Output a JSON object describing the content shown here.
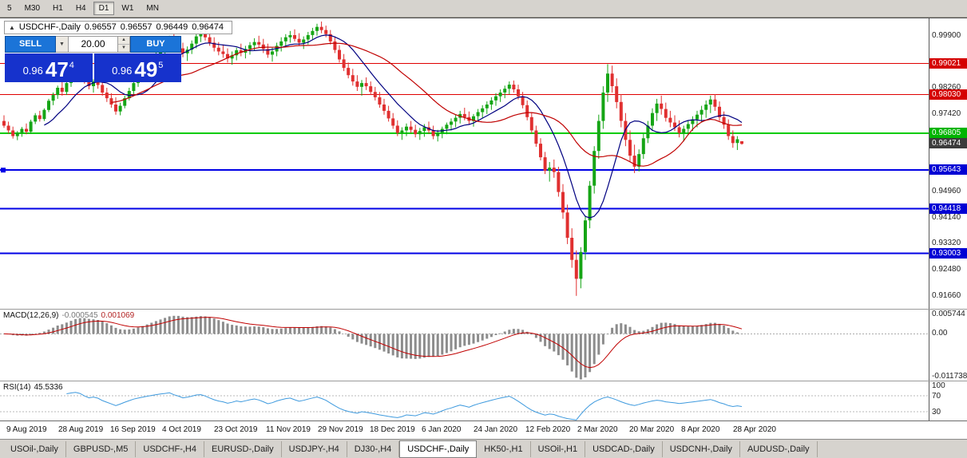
{
  "toolbar": {
    "timeframes": [
      "5",
      "M30",
      "H1",
      "H4",
      "D1",
      "W1",
      "MN"
    ],
    "active_timeframe": "D1"
  },
  "chart": {
    "symbol": "USDCHF-,Daily",
    "open": "0.96557",
    "high": "0.96557",
    "low": "0.96449",
    "close": "0.96474"
  },
  "trade_panel": {
    "sell_label": "SELL",
    "buy_label": "BUY",
    "volume": "20.00",
    "sell_price_prefix": "0.96",
    "sell_price_main": "47",
    "sell_price_sup": "4",
    "buy_price_prefix": "0.96",
    "buy_price_main": "49",
    "buy_price_sup": "5"
  },
  "icons": {
    "collapse": "▲",
    "dropdown": "▼",
    "spin_up": "▲",
    "spin_down": "▼"
  },
  "macd": {
    "label": "MACD(12,26,9)",
    "value_main": "-0.000545",
    "value_signal": "0.001069",
    "params": [
      12,
      26,
      9
    ],
    "axis": [
      {
        "text": "0.005744",
        "value": 0.005744
      },
      {
        "text": "0.00",
        "value": 0
      },
      {
        "text": "-0.011738",
        "value": -0.011738
      }
    ]
  },
  "rsi": {
    "label": "RSI(14)",
    "value": "45.5336",
    "period": 14,
    "level_lines": [
      70,
      30
    ],
    "axis": [
      {
        "text": "100",
        "value": 100
      },
      {
        "text": "70",
        "value": 70
      },
      {
        "text": "30",
        "value": 30
      }
    ]
  },
  "tabs": {
    "active": "USDCHF-,Daily",
    "items": [
      {
        "label": "USOil-,Daily"
      },
      {
        "label": "GBPUSD-,M5"
      },
      {
        "label": "USDCHF-,H4"
      },
      {
        "label": "EURUSD-,Daily"
      },
      {
        "label": "USDJPY-,H4"
      },
      {
        "label": "DJ30-,H4"
      },
      {
        "label": "USDCHF-,Daily"
      },
      {
        "label": "HK50-,H1"
      },
      {
        "label": "USOil-,H1"
      },
      {
        "label": "USDCAD-,Daily"
      },
      {
        "label": "USDCNH-,Daily"
      },
      {
        "label": "AUDUSD-,Daily"
      }
    ]
  },
  "chart_data": {
    "type": "candlestick",
    "symbol": "USDCHF",
    "timeframe": "Daily",
    "y_range": [
      0.9125,
      1.0045
    ],
    "x_dates": [
      "9 Aug 2019",
      "28 Aug 2019",
      "16 Sep 2019",
      "4 Oct 2019",
      "23 Oct 2019",
      "11 Nov 2019",
      "29 Nov 2019",
      "18 Dec 2019",
      "6 Jan 2020",
      "24 Jan 2020",
      "12 Feb 2020",
      "2 Mar 2020",
      "20 Mar 2020",
      "8 Apr 2020",
      "28 Apr 2020"
    ],
    "y_ticks": [
      {
        "text": "0.99900",
        "value": 0.999
      },
      {
        "text": "0.98260",
        "value": 0.9826
      },
      {
        "text": "0.97420",
        "value": 0.9742
      },
      {
        "text": "0.94960",
        "value": 0.9496
      },
      {
        "text": "0.94140",
        "value": 0.9414
      },
      {
        "text": "0.93320",
        "value": 0.9332
      },
      {
        "text": "0.92480",
        "value": 0.9248
      },
      {
        "text": "0.91660",
        "value": 0.9166
      }
    ],
    "price_tags": [
      {
        "text": "0.99021",
        "value": 0.99021,
        "bg": "#d40000"
      },
      {
        "text": "0.98030",
        "value": 0.9803,
        "bg": "#d40000"
      },
      {
        "text": "0.96805",
        "value": 0.96805,
        "bg": "#00b400"
      },
      {
        "text": "0.96474",
        "value": 0.96474,
        "bg": "#3c3c3c"
      },
      {
        "text": "0.95643",
        "value": 0.95643,
        "bg": "#0000d4"
      },
      {
        "text": "0.94418",
        "value": 0.94418,
        "bg": "#0000d4"
      },
      {
        "text": "0.93003",
        "value": 0.93003,
        "bg": "#0000d4"
      }
    ],
    "levels": [
      {
        "price": 0.99021,
        "color": "#e00000",
        "width": 1
      },
      {
        "price": 0.9803,
        "color": "#e00000",
        "width": 1
      },
      {
        "price": 0.96805,
        "color": "#00cc00",
        "width": 2
      },
      {
        "price": 0.95643,
        "color": "#0000e6",
        "width": 2,
        "handle": true
      },
      {
        "price": 0.94418,
        "color": "#0000e6",
        "width": 2
      },
      {
        "price": 0.93003,
        "color": "#0000e6",
        "width": 2
      }
    ],
    "indicators": {
      "ma_fast_period": 10,
      "ma_slow_period": 25
    },
    "colors": {
      "up": "#16a516",
      "down": "#e03030",
      "ma_fast": "#000080",
      "ma_slow": "#c00000",
      "macd_hist": "#8c8c8c",
      "macd_signal": "#c00000",
      "rsi": "#3e9ade"
    },
    "ohlc": [
      [
        0.972,
        0.9738,
        0.9698,
        0.9705
      ],
      [
        0.9705,
        0.9718,
        0.968,
        0.969
      ],
      [
        0.969,
        0.9702,
        0.9664,
        0.9672
      ],
      [
        0.9672,
        0.9688,
        0.9659,
        0.9682
      ],
      [
        0.9682,
        0.9701,
        0.967,
        0.9695
      ],
      [
        0.9695,
        0.9712,
        0.9678,
        0.9686
      ],
      [
        0.9686,
        0.9724,
        0.968,
        0.9718
      ],
      [
        0.9718,
        0.9745,
        0.971,
        0.9738
      ],
      [
        0.9738,
        0.9752,
        0.9718,
        0.9726
      ],
      [
        0.9726,
        0.976,
        0.972,
        0.9755
      ],
      [
        0.9755,
        0.979,
        0.9748,
        0.9784
      ],
      [
        0.9784,
        0.981,
        0.977,
        0.9802
      ],
      [
        0.9802,
        0.9832,
        0.979,
        0.9825
      ],
      [
        0.9825,
        0.9845,
        0.98,
        0.9812
      ],
      [
        0.9812,
        0.9848,
        0.9802,
        0.984
      ],
      [
        0.984,
        0.9872,
        0.9828,
        0.986
      ],
      [
        0.986,
        0.989,
        0.9845,
        0.9878
      ],
      [
        0.9878,
        0.9902,
        0.986,
        0.9869
      ],
      [
        0.9869,
        0.988,
        0.9838,
        0.9848
      ],
      [
        0.9848,
        0.9865,
        0.982,
        0.983
      ],
      [
        0.983,
        0.9852,
        0.981,
        0.9845
      ],
      [
        0.9845,
        0.986,
        0.9822,
        0.9834
      ],
      [
        0.9834,
        0.9846,
        0.98,
        0.981
      ],
      [
        0.981,
        0.9825,
        0.978,
        0.9792
      ],
      [
        0.9792,
        0.9808,
        0.9762,
        0.9772
      ],
      [
        0.9772,
        0.9795,
        0.974,
        0.975
      ],
      [
        0.975,
        0.9778,
        0.9738,
        0.9768
      ],
      [
        0.9768,
        0.98,
        0.976,
        0.9792
      ],
      [
        0.9792,
        0.9825,
        0.9785,
        0.9815
      ],
      [
        0.9815,
        0.9848,
        0.9805,
        0.984
      ],
      [
        0.984,
        0.987,
        0.9828,
        0.9858
      ],
      [
        0.9858,
        0.9888,
        0.9845,
        0.9875
      ],
      [
        0.9875,
        0.9905,
        0.9862,
        0.9895
      ],
      [
        0.9895,
        0.9925,
        0.988,
        0.9912
      ],
      [
        0.9912,
        0.994,
        0.9898,
        0.993
      ],
      [
        0.993,
        0.9958,
        0.9915,
        0.9945
      ],
      [
        0.9945,
        0.9972,
        0.993,
        0.996
      ],
      [
        0.996,
        0.999,
        0.9945,
        0.9978
      ],
      [
        0.9978,
        1.0,
        0.9952,
        0.9962
      ],
      [
        0.9962,
        0.998,
        0.9938,
        0.995
      ],
      [
        0.995,
        0.9968,
        0.9922,
        0.9934
      ],
      [
        0.9934,
        0.9956,
        0.991,
        0.9946
      ],
      [
        0.9946,
        0.9975,
        0.9932,
        0.9965
      ],
      [
        0.9965,
        0.9998,
        0.995,
        0.9988
      ],
      [
        0.9988,
        1.0008,
        0.997,
        0.9996
      ],
      [
        0.9996,
        1.0012,
        0.9975,
        0.9985
      ],
      [
        0.9985,
        0.9999,
        0.9958,
        0.9968
      ],
      [
        0.9968,
        0.9985,
        0.994,
        0.9952
      ],
      [
        0.9952,
        0.997,
        0.9928,
        0.994
      ],
      [
        0.994,
        0.9962,
        0.992,
        0.9932
      ],
      [
        0.9932,
        0.995,
        0.9905,
        0.9918
      ],
      [
        0.9918,
        0.994,
        0.9898,
        0.9928
      ],
      [
        0.9928,
        0.9952,
        0.9912,
        0.9944
      ],
      [
        0.9944,
        0.9965,
        0.9925,
        0.9936
      ],
      [
        0.9936,
        0.9958,
        0.9918,
        0.9948
      ],
      [
        0.9948,
        0.997,
        0.993,
        0.996
      ],
      [
        0.996,
        0.9982,
        0.9942,
        0.997
      ],
      [
        0.997,
        0.999,
        0.9952,
        0.9962
      ],
      [
        0.9962,
        0.998,
        0.9935,
        0.9948
      ],
      [
        0.9948,
        0.9965,
        0.992,
        0.993
      ],
      [
        0.993,
        0.9952,
        0.9908,
        0.994
      ],
      [
        0.994,
        0.9968,
        0.9925,
        0.9958
      ],
      [
        0.9958,
        0.9985,
        0.994,
        0.9972
      ],
      [
        0.9972,
        0.9995,
        0.9955,
        0.9985
      ],
      [
        0.9985,
        1.0005,
        0.9968,
        0.9992
      ],
      [
        0.9992,
        1.001,
        0.9972,
        0.998
      ],
      [
        0.998,
        0.9998,
        0.9958,
        0.9968
      ],
      [
        0.9968,
        0.9988,
        0.9948,
        0.9978
      ],
      [
        0.9978,
        1.0002,
        0.9962,
        0.9992
      ],
      [
        0.9992,
        1.0015,
        0.9978,
        1.0005
      ],
      [
        1.0005,
        1.0028,
        0.999,
        1.0018
      ],
      [
        1.0018,
        1.0035,
        0.9998,
        1.0008
      ],
      [
        1.0008,
        1.0022,
        0.9985,
        0.9995
      ],
      [
        0.9995,
        1.0008,
        0.9962,
        0.9972
      ],
      [
        0.9972,
        0.9988,
        0.9935,
        0.9945
      ],
      [
        0.9945,
        0.996,
        0.9905,
        0.9915
      ],
      [
        0.9915,
        0.9932,
        0.9878,
        0.9888
      ],
      [
        0.9888,
        0.9905,
        0.9855,
        0.9865
      ],
      [
        0.9865,
        0.9885,
        0.9832,
        0.9845
      ],
      [
        0.9845,
        0.9865,
        0.9815,
        0.9828
      ],
      [
        0.9828,
        0.985,
        0.98,
        0.984
      ],
      [
        0.984,
        0.9858,
        0.9818,
        0.983
      ],
      [
        0.983,
        0.9845,
        0.9802,
        0.9812
      ],
      [
        0.9812,
        0.9828,
        0.9785,
        0.9795
      ],
      [
        0.9795,
        0.9812,
        0.9762,
        0.9772
      ],
      [
        0.9772,
        0.979,
        0.974,
        0.9752
      ],
      [
        0.9752,
        0.9768,
        0.9718,
        0.9728
      ],
      [
        0.9728,
        0.9745,
        0.9695,
        0.9705
      ],
      [
        0.9705,
        0.9722,
        0.9672,
        0.9682
      ],
      [
        0.9682,
        0.97,
        0.966,
        0.969
      ],
      [
        0.969,
        0.9712,
        0.9672,
        0.9702
      ],
      [
        0.9702,
        0.972,
        0.9682,
        0.9692
      ],
      [
        0.9692,
        0.9708,
        0.9668,
        0.9678
      ],
      [
        0.9678,
        0.9698,
        0.966,
        0.9688
      ],
      [
        0.9688,
        0.971,
        0.967,
        0.97
      ],
      [
        0.97,
        0.9718,
        0.968,
        0.969
      ],
      [
        0.969,
        0.9705,
        0.9662,
        0.9672
      ],
      [
        0.9672,
        0.9692,
        0.9655,
        0.9682
      ],
      [
        0.9682,
        0.9702,
        0.9665,
        0.9695
      ],
      [
        0.9695,
        0.9715,
        0.9678,
        0.9708
      ],
      [
        0.9708,
        0.9728,
        0.969,
        0.9718
      ],
      [
        0.9718,
        0.974,
        0.97,
        0.973
      ],
      [
        0.973,
        0.9752,
        0.9712,
        0.9742
      ],
      [
        0.9742,
        0.9762,
        0.9722,
        0.9732
      ],
      [
        0.9732,
        0.975,
        0.971,
        0.972
      ],
      [
        0.972,
        0.9742,
        0.9702,
        0.9735
      ],
      [
        0.9735,
        0.9758,
        0.9718,
        0.9748
      ],
      [
        0.9748,
        0.977,
        0.973,
        0.976
      ],
      [
        0.976,
        0.9782,
        0.9742,
        0.9772
      ],
      [
        0.9772,
        0.9795,
        0.9755,
        0.9785
      ],
      [
        0.9785,
        0.9808,
        0.9768,
        0.9798
      ],
      [
        0.9798,
        0.982,
        0.978,
        0.981
      ],
      [
        0.981,
        0.9832,
        0.9792,
        0.9822
      ],
      [
        0.9822,
        0.9845,
        0.9805,
        0.9835
      ],
      [
        0.9835,
        0.9848,
        0.981,
        0.982
      ],
      [
        0.982,
        0.9835,
        0.9788,
        0.9798
      ],
      [
        0.9798,
        0.9812,
        0.976,
        0.977
      ],
      [
        0.977,
        0.9785,
        0.9722,
        0.9732
      ],
      [
        0.9732,
        0.9748,
        0.968,
        0.969
      ],
      [
        0.969,
        0.9705,
        0.9638,
        0.9648
      ],
      [
        0.9648,
        0.9665,
        0.9595,
        0.9605
      ],
      [
        0.9605,
        0.9622,
        0.9552,
        0.9562
      ],
      [
        0.9562,
        0.959,
        0.9528,
        0.9572
      ],
      [
        0.9572,
        0.9598,
        0.954,
        0.9558
      ],
      [
        0.9558,
        0.9575,
        0.948,
        0.9495
      ],
      [
        0.9495,
        0.952,
        0.941,
        0.943
      ],
      [
        0.943,
        0.9455,
        0.933,
        0.935
      ],
      [
        0.935,
        0.938,
        0.9255,
        0.928
      ],
      [
        0.928,
        0.931,
        0.9166,
        0.922
      ],
      [
        0.922,
        0.932,
        0.919,
        0.9305
      ],
      [
        0.9305,
        0.942,
        0.928,
        0.9405
      ],
      [
        0.9405,
        0.953,
        0.938,
        0.9515
      ],
      [
        0.9515,
        0.964,
        0.949,
        0.9625
      ],
      [
        0.9625,
        0.974,
        0.96,
        0.972
      ],
      [
        0.972,
        0.983,
        0.9695,
        0.981
      ],
      [
        0.981,
        0.99,
        0.978,
        0.987
      ],
      [
        0.987,
        0.9895,
        0.981,
        0.983
      ],
      [
        0.983,
        0.9855,
        0.976,
        0.978
      ],
      [
        0.978,
        0.9805,
        0.97,
        0.972
      ],
      [
        0.972,
        0.9745,
        0.964,
        0.966
      ],
      [
        0.966,
        0.969,
        0.959,
        0.961
      ],
      [
        0.961,
        0.9645,
        0.9555,
        0.9575
      ],
      [
        0.9575,
        0.963,
        0.956,
        0.9615
      ],
      [
        0.9615,
        0.968,
        0.96,
        0.9665
      ],
      [
        0.9665,
        0.972,
        0.965,
        0.9705
      ],
      [
        0.9705,
        0.976,
        0.969,
        0.9745
      ],
      [
        0.9745,
        0.979,
        0.972,
        0.9775
      ],
      [
        0.9775,
        0.98,
        0.974,
        0.9758
      ],
      [
        0.9758,
        0.9778,
        0.9718,
        0.973
      ],
      [
        0.973,
        0.9752,
        0.97,
        0.9715
      ],
      [
        0.9715,
        0.9738,
        0.9688,
        0.97
      ],
      [
        0.97,
        0.9722,
        0.9668,
        0.9682
      ],
      [
        0.9682,
        0.9705,
        0.9655,
        0.9695
      ],
      [
        0.9695,
        0.972,
        0.9675,
        0.971
      ],
      [
        0.971,
        0.9735,
        0.9688,
        0.9725
      ],
      [
        0.9725,
        0.9752,
        0.97,
        0.974
      ],
      [
        0.974,
        0.9768,
        0.9715,
        0.9755
      ],
      [
        0.9755,
        0.9785,
        0.973,
        0.9772
      ],
      [
        0.9772,
        0.98,
        0.9745,
        0.9788
      ],
      [
        0.9788,
        0.9805,
        0.9752,
        0.9765
      ],
      [
        0.9765,
        0.9782,
        0.972,
        0.9732
      ],
      [
        0.9732,
        0.975,
        0.9695,
        0.9708
      ],
      [
        0.9708,
        0.9725,
        0.966,
        0.9672
      ],
      [
        0.9672,
        0.969,
        0.9635,
        0.965
      ],
      [
        0.965,
        0.9672,
        0.9628,
        0.9662
      ],
      [
        0.96557,
        0.96557,
        0.96449,
        0.96474
      ]
    ]
  }
}
